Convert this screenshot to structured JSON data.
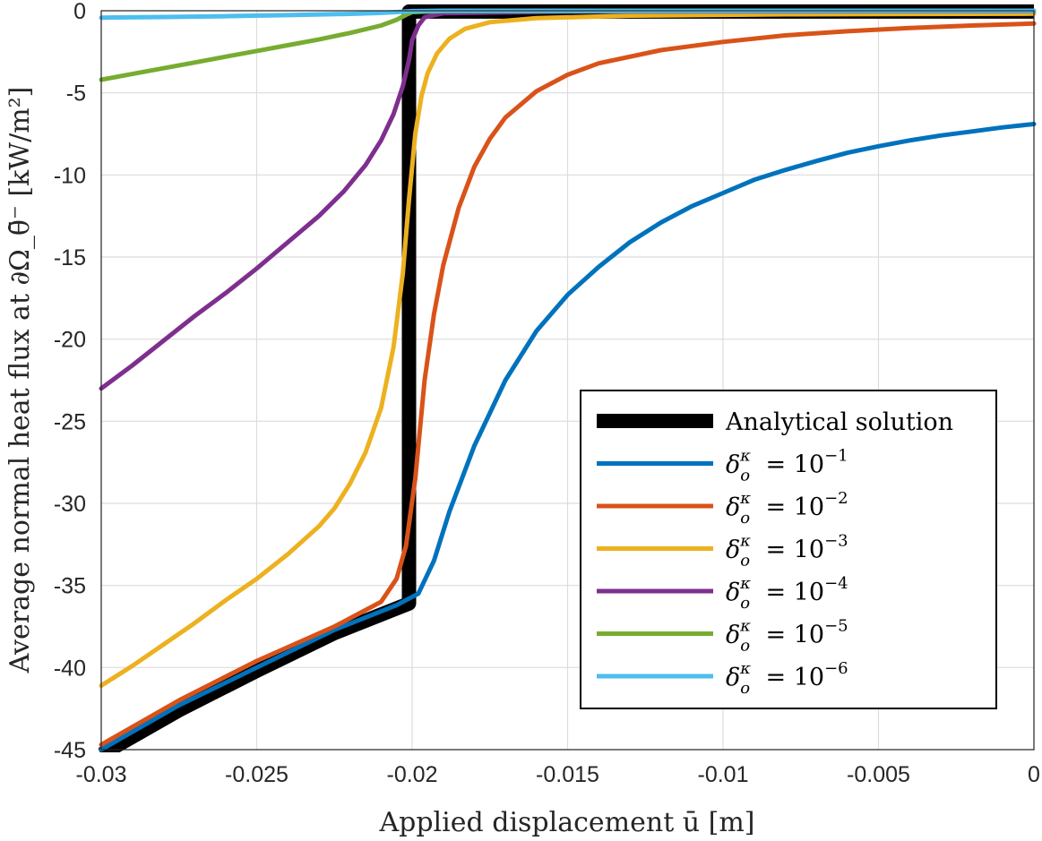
{
  "chart_data": {
    "type": "line",
    "xlabel": "Applied displacement ū [m]",
    "ylabel": "Average normal heat flux at ∂Ω_θ̄⁻ [kW/m²]",
    "xlim": [
      -0.03,
      0
    ],
    "ylim": [
      -45,
      0
    ],
    "x_ticks": [
      -0.03,
      -0.025,
      -0.02,
      -0.015,
      -0.01,
      -0.005,
      0
    ],
    "x_tick_labels": [
      "-0.03",
      "-0.025",
      "-0.02",
      "-0.015",
      "-0.01",
      "-0.005",
      "0"
    ],
    "y_ticks": [
      0,
      -5,
      -10,
      -15,
      -20,
      -25,
      -30,
      -35,
      -40,
      -45
    ],
    "y_tick_labels": [
      "0",
      "-5",
      "-10",
      "-15",
      "-20",
      "-25",
      "-30",
      "-35",
      "-40",
      "-45"
    ],
    "grid": true,
    "legend_position": "bottom-right",
    "series": [
      {
        "name": "Analytical solution",
        "color": "#000000",
        "points": [
          [
            -0.03,
            -45.3
          ],
          [
            -0.0275,
            -42.6
          ],
          [
            -0.025,
            -40.2
          ],
          [
            -0.0225,
            -37.9
          ],
          [
            -0.0201,
            -36.1
          ],
          [
            -0.0201,
            -0.05
          ],
          [
            0,
            -0.05
          ]
        ]
      },
      {
        "name": "δ_o^κ = 10^{-1}",
        "sup": "−1",
        "color": "#0072BD",
        "points": [
          [
            -0.03,
            -45.0
          ],
          [
            -0.0275,
            -42.3
          ],
          [
            -0.025,
            -40.0
          ],
          [
            -0.0225,
            -37.7
          ],
          [
            -0.0205,
            -36.2
          ],
          [
            -0.0198,
            -35.5
          ],
          [
            -0.0193,
            -33.5
          ],
          [
            -0.0188,
            -30.5
          ],
          [
            -0.018,
            -26.5
          ],
          [
            -0.017,
            -22.5
          ],
          [
            -0.016,
            -19.5
          ],
          [
            -0.015,
            -17.3
          ],
          [
            -0.014,
            -15.6
          ],
          [
            -0.013,
            -14.1
          ],
          [
            -0.012,
            -12.9
          ],
          [
            -0.011,
            -11.9
          ],
          [
            -0.01,
            -11.1
          ],
          [
            -0.009,
            -10.3
          ],
          [
            -0.008,
            -9.7
          ],
          [
            -0.007,
            -9.15
          ],
          [
            -0.006,
            -8.65
          ],
          [
            -0.005,
            -8.25
          ],
          [
            -0.004,
            -7.9
          ],
          [
            -0.003,
            -7.6
          ],
          [
            -0.002,
            -7.35
          ],
          [
            -0.001,
            -7.1
          ],
          [
            0,
            -6.9
          ]
        ]
      },
      {
        "name": "δ_o^κ = 10^{-2}",
        "sup": "−2",
        "color": "#D95319",
        "points": [
          [
            -0.03,
            -44.7
          ],
          [
            -0.0275,
            -42.0
          ],
          [
            -0.025,
            -39.6
          ],
          [
            -0.0225,
            -37.5
          ],
          [
            -0.021,
            -36.0
          ],
          [
            -0.0205,
            -34.6
          ],
          [
            -0.0202,
            -32.6
          ],
          [
            -0.0199,
            -28.5
          ],
          [
            -0.0196,
            -22.5
          ],
          [
            -0.0193,
            -18.5
          ],
          [
            -0.019,
            -15.5
          ],
          [
            -0.0185,
            -12.0
          ],
          [
            -0.018,
            -9.5
          ],
          [
            -0.0175,
            -7.8
          ],
          [
            -0.017,
            -6.5
          ],
          [
            -0.016,
            -4.9
          ],
          [
            -0.015,
            -3.9
          ],
          [
            -0.014,
            -3.2
          ],
          [
            -0.012,
            -2.4
          ],
          [
            -0.01,
            -1.9
          ],
          [
            -0.008,
            -1.5
          ],
          [
            -0.006,
            -1.25
          ],
          [
            -0.004,
            -1.05
          ],
          [
            -0.002,
            -0.9
          ],
          [
            0,
            -0.78
          ]
        ]
      },
      {
        "name": "δ_o^κ = 10^{-3}",
        "sup": "−3",
        "color": "#EDB120",
        "points": [
          [
            -0.03,
            -41.1
          ],
          [
            -0.029,
            -39.9
          ],
          [
            -0.028,
            -38.6
          ],
          [
            -0.027,
            -37.3
          ],
          [
            -0.026,
            -35.9
          ],
          [
            -0.025,
            -34.6
          ],
          [
            -0.024,
            -33.1
          ],
          [
            -0.023,
            -31.4
          ],
          [
            -0.0225,
            -30.3
          ],
          [
            -0.022,
            -28.8
          ],
          [
            -0.0215,
            -26.9
          ],
          [
            -0.021,
            -24.2
          ],
          [
            -0.0206,
            -20.5
          ],
          [
            -0.0203,
            -16.0
          ],
          [
            -0.0201,
            -11.5
          ],
          [
            -0.0199,
            -7.5
          ],
          [
            -0.0197,
            -5.2
          ],
          [
            -0.0195,
            -3.8
          ],
          [
            -0.0192,
            -2.6
          ],
          [
            -0.0188,
            -1.7
          ],
          [
            -0.0183,
            -1.1
          ],
          [
            -0.0175,
            -0.7
          ],
          [
            -0.016,
            -0.45
          ],
          [
            -0.013,
            -0.3
          ],
          [
            -0.008,
            -0.22
          ],
          [
            0,
            -0.18
          ]
        ]
      },
      {
        "name": "δ_o^κ = 10^{-4}",
        "sup": "−4",
        "color": "#7E2F8E",
        "points": [
          [
            -0.03,
            -23.0
          ],
          [
            -0.029,
            -21.6
          ],
          [
            -0.028,
            -20.1
          ],
          [
            -0.027,
            -18.6
          ],
          [
            -0.026,
            -17.2
          ],
          [
            -0.025,
            -15.7
          ],
          [
            -0.024,
            -14.1
          ],
          [
            -0.023,
            -12.5
          ],
          [
            -0.0222,
            -11.0
          ],
          [
            -0.0215,
            -9.4
          ],
          [
            -0.021,
            -7.9
          ],
          [
            -0.0206,
            -6.3
          ],
          [
            -0.0203,
            -4.6
          ],
          [
            -0.0201,
            -3.0
          ],
          [
            -0.02,
            -1.8
          ],
          [
            -0.0198,
            -0.9
          ],
          [
            -0.0196,
            -0.4
          ],
          [
            -0.019,
            -0.15
          ],
          [
            -0.015,
            -0.05
          ],
          [
            0,
            -0.02
          ]
        ]
      },
      {
        "name": "δ_o^κ = 10^{-5}",
        "sup": "−5",
        "color": "#77AC30",
        "points": [
          [
            -0.03,
            -4.2
          ],
          [
            -0.029,
            -3.85
          ],
          [
            -0.028,
            -3.5
          ],
          [
            -0.027,
            -3.15
          ],
          [
            -0.026,
            -2.8
          ],
          [
            -0.025,
            -2.45
          ],
          [
            -0.024,
            -2.1
          ],
          [
            -0.023,
            -1.75
          ],
          [
            -0.022,
            -1.35
          ],
          [
            -0.021,
            -0.9
          ],
          [
            -0.0205,
            -0.55
          ],
          [
            -0.0202,
            -0.25
          ],
          [
            -0.02,
            -0.08
          ],
          [
            -0.019,
            -0.02
          ],
          [
            0,
            0
          ]
        ]
      },
      {
        "name": "δ_o^κ = 10^{-6}",
        "sup": "−6",
        "color": "#4DBEEE",
        "points": [
          [
            -0.03,
            -0.42
          ],
          [
            -0.028,
            -0.38
          ],
          [
            -0.026,
            -0.33
          ],
          [
            -0.024,
            -0.27
          ],
          [
            -0.022,
            -0.19
          ],
          [
            -0.021,
            -0.13
          ],
          [
            -0.0205,
            -0.08
          ],
          [
            -0.02,
            -0.02
          ],
          [
            -0.019,
            0
          ],
          [
            0,
            0
          ]
        ]
      }
    ]
  }
}
